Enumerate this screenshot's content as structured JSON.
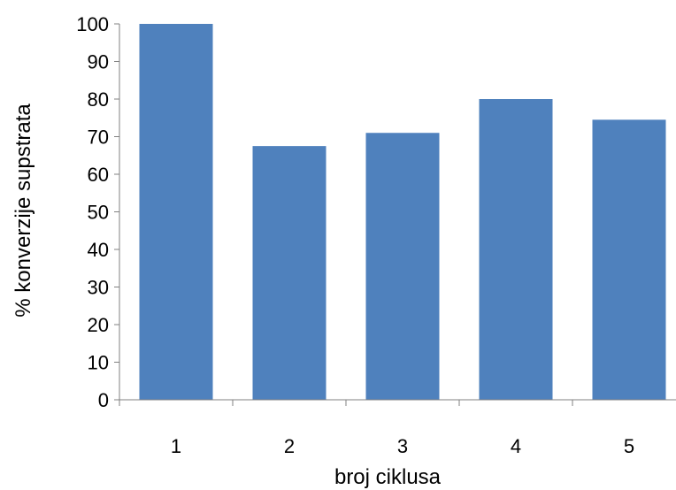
{
  "chart_data": {
    "type": "bar",
    "categories": [
      "1",
      "2",
      "3",
      "4",
      "5"
    ],
    "values": [
      100,
      67.5,
      71,
      80,
      74.5
    ],
    "xlabel": "broj ciklusa",
    "ylabel": "% konverzije supstrata",
    "ylim": [
      0,
      100
    ],
    "yticks": [
      0,
      10,
      20,
      30,
      40,
      50,
      60,
      70,
      80,
      90,
      100
    ],
    "grid": false,
    "legend": "none",
    "bar_color": "#4f81bd",
    "axis_color": "#808080"
  }
}
